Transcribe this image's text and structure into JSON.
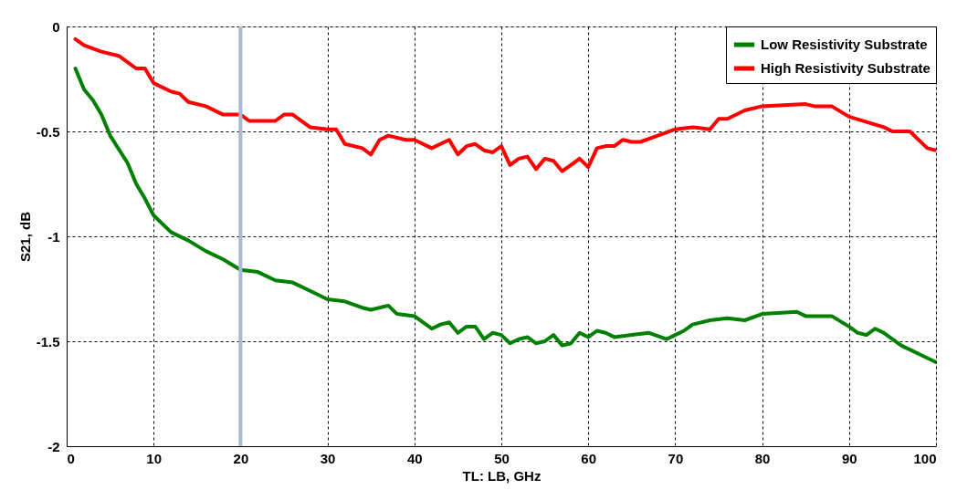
{
  "chart_data": {
    "type": "line",
    "xlabel": "TL: LB, GHz",
    "ylabel": "S21, dB",
    "xlim": [
      0,
      100
    ],
    "xticks": [
      0,
      10,
      20,
      30,
      40,
      50,
      60,
      70,
      80,
      90,
      100
    ],
    "ylim": [
      -2,
      0
    ],
    "yticks": [
      -2,
      -1.5,
      -1,
      -0.5,
      0
    ],
    "grid": true,
    "legend": "top right",
    "line_style": "solid",
    "ref_lines": [
      {
        "axis": "x",
        "value": 20,
        "color": "#a9b9d6"
      }
    ],
    "series": [
      {
        "name": "Low Resistivity Substrate",
        "color": "#008000",
        "x": [
          1,
          2,
          3,
          4,
          5,
          7,
          8,
          9,
          10,
          12,
          14,
          16,
          18,
          20,
          22,
          24,
          26,
          28,
          30,
          32,
          34,
          35,
          37,
          38,
          40,
          42,
          43,
          44,
          45,
          46,
          47,
          48,
          49,
          50,
          51,
          52,
          53,
          54,
          55,
          56,
          57,
          58,
          59,
          60,
          61,
          62,
          63,
          65,
          67,
          69,
          70,
          71,
          72,
          74,
          76,
          78,
          80,
          84,
          85,
          88,
          90,
          91,
          92,
          93,
          94,
          96,
          98,
          100
        ],
        "values": [
          -0.2,
          -0.3,
          -0.35,
          -0.42,
          -0.52,
          -0.65,
          -0.75,
          -0.82,
          -0.9,
          -0.98,
          -1.02,
          -1.07,
          -1.11,
          -1.16,
          -1.17,
          -1.21,
          -1.22,
          -1.26,
          -1.3,
          -1.31,
          -1.34,
          -1.35,
          -1.33,
          -1.37,
          -1.38,
          -1.44,
          -1.42,
          -1.41,
          -1.46,
          -1.43,
          -1.43,
          -1.49,
          -1.46,
          -1.47,
          -1.51,
          -1.49,
          -1.48,
          -1.51,
          -1.5,
          -1.47,
          -1.52,
          -1.51,
          -1.46,
          -1.48,
          -1.45,
          -1.46,
          -1.48,
          -1.47,
          -1.46,
          -1.49,
          -1.47,
          -1.45,
          -1.42,
          -1.4,
          -1.39,
          -1.4,
          -1.37,
          -1.36,
          -1.38,
          -1.38,
          -1.43,
          -1.46,
          -1.47,
          -1.44,
          -1.46,
          -1.52,
          -1.56,
          -1.6
        ]
      },
      {
        "name": "High Resistivity Substrate",
        "color": "#ff0000",
        "x": [
          1,
          2,
          4,
          6,
          7,
          8,
          9,
          10,
          12,
          13,
          14,
          16,
          18,
          20,
          21,
          24,
          25,
          26,
          28,
          30,
          31,
          32,
          34,
          35,
          36,
          37,
          39,
          40,
          42,
          43,
          44,
          45,
          46,
          47,
          48,
          49,
          50,
          51,
          52,
          53,
          54,
          55,
          56,
          57,
          58,
          59,
          60,
          61,
          62,
          63,
          64,
          65,
          66,
          68,
          70,
          72,
          74,
          75,
          76,
          78,
          80,
          85,
          86,
          88,
          90,
          94,
          95,
          97,
          99,
          100
        ],
        "values": [
          -0.06,
          -0.09,
          -0.12,
          -0.14,
          -0.17,
          -0.2,
          -0.2,
          -0.27,
          -0.31,
          -0.32,
          -0.36,
          -0.38,
          -0.42,
          -0.42,
          -0.45,
          -0.45,
          -0.42,
          -0.42,
          -0.48,
          -0.49,
          -0.49,
          -0.56,
          -0.58,
          -0.61,
          -0.54,
          -0.52,
          -0.54,
          -0.54,
          -0.58,
          -0.56,
          -0.54,
          -0.61,
          -0.57,
          -0.56,
          -0.59,
          -0.6,
          -0.57,
          -0.66,
          -0.63,
          -0.62,
          -0.68,
          -0.63,
          -0.64,
          -0.69,
          -0.66,
          -0.63,
          -0.67,
          -0.58,
          -0.57,
          -0.57,
          -0.54,
          -0.55,
          -0.55,
          -0.52,
          -0.49,
          -0.48,
          -0.49,
          -0.44,
          -0.44,
          -0.4,
          -0.38,
          -0.37,
          -0.38,
          -0.38,
          -0.43,
          -0.48,
          -0.5,
          -0.5,
          -0.58,
          -0.59
        ]
      }
    ]
  }
}
